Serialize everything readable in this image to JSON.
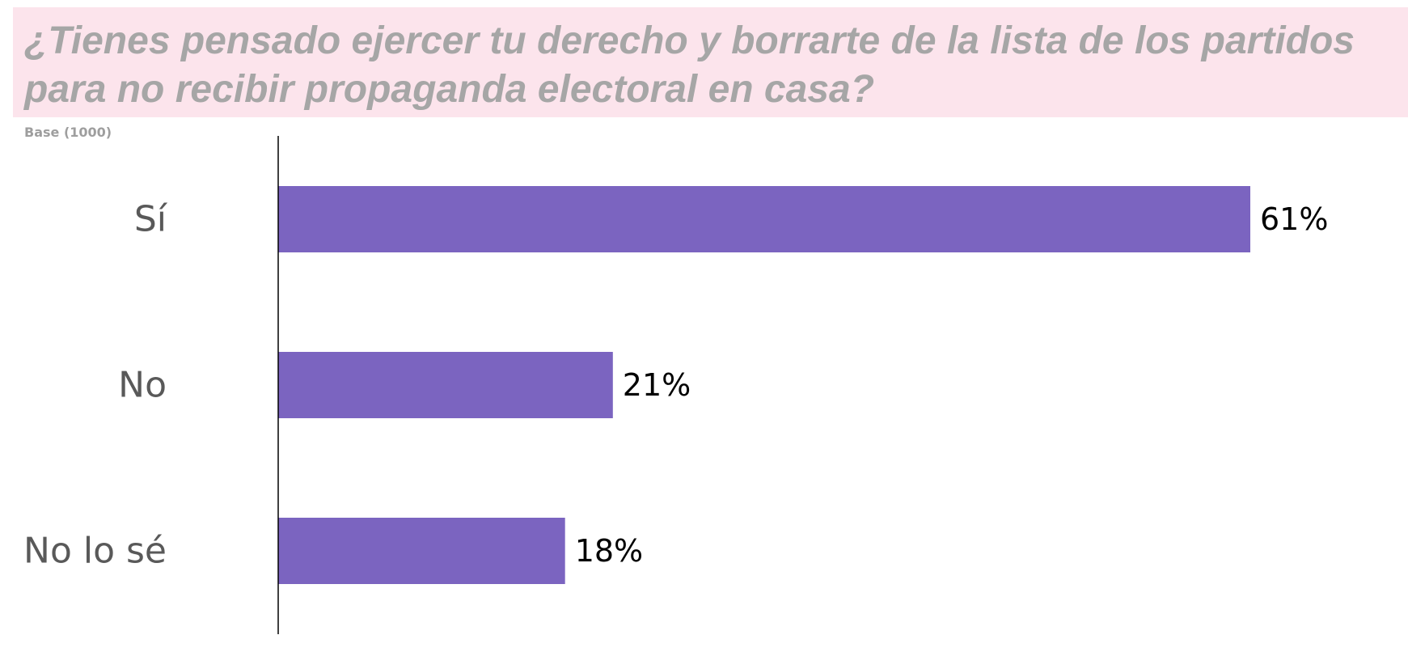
{
  "chart_data": {
    "type": "bar",
    "orientation": "horizontal",
    "title": "¿Tienes pensado ejercer tu derecho y borrarte de la lista de los partidos para no recibir propaganda electoral en casa?",
    "subtitle": "Base (1000)",
    "categories": [
      "Sí",
      "No",
      "No lo sé"
    ],
    "values": [
      61,
      21,
      18
    ],
    "value_labels": [
      "61%",
      "21%",
      "18%"
    ],
    "unit": "%",
    "xlim": [
      0,
      61
    ],
    "grid": false,
    "legend": "none",
    "colors": {
      "bar": "#7b64c0",
      "title_banner": "#fce4ec",
      "title_text": "#a6a6a6",
      "category_text": "#595959",
      "value_text": "#000000",
      "axis": "#000000"
    }
  }
}
